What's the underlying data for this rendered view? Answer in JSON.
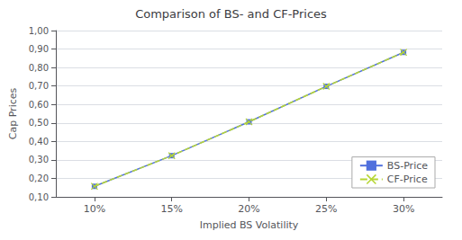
{
  "chart_data": {
    "type": "line",
    "title": "Comparison of BS- and CF-Prices",
    "xlabel": "Implied BS Volatility",
    "ylabel": "Cap Prices",
    "x": [
      0.1,
      0.15,
      0.2,
      0.25,
      0.3
    ],
    "series": [
      {
        "name": "BS-Price",
        "values": [
          0.157,
          0.323,
          0.506,
          0.698,
          0.882
        ],
        "marker": "square",
        "line_style": "solid"
      },
      {
        "name": "CF-Price",
        "values": [
          0.157,
          0.323,
          0.506,
          0.698,
          0.882
        ],
        "marker": "x",
        "line_style": "dashed"
      }
    ],
    "xlim": [
      0.075,
      0.325
    ],
    "xticks": [
      {
        "value": 0.1,
        "label": "10%"
      },
      {
        "value": 0.15,
        "label": "15%"
      },
      {
        "value": 0.2,
        "label": "20%"
      },
      {
        "value": 0.25,
        "label": "25%"
      },
      {
        "value": 0.3,
        "label": "30%"
      }
    ],
    "ylim": [
      0.1,
      1.0
    ],
    "yticks": [
      {
        "value": 0.1,
        "label": "0,10"
      },
      {
        "value": 0.2,
        "label": "0,20"
      },
      {
        "value": 0.3,
        "label": "0,30"
      },
      {
        "value": 0.4,
        "label": "0,40"
      },
      {
        "value": 0.5,
        "label": "0,50"
      },
      {
        "value": 0.6,
        "label": "0,60"
      },
      {
        "value": 0.7,
        "label": "0,70"
      },
      {
        "value": 0.8,
        "label": "0,80"
      },
      {
        "value": 0.9,
        "label": "0,90"
      },
      {
        "value": 1.0,
        "label": "1,00"
      }
    ],
    "grid": true,
    "legend": "lower right"
  }
}
